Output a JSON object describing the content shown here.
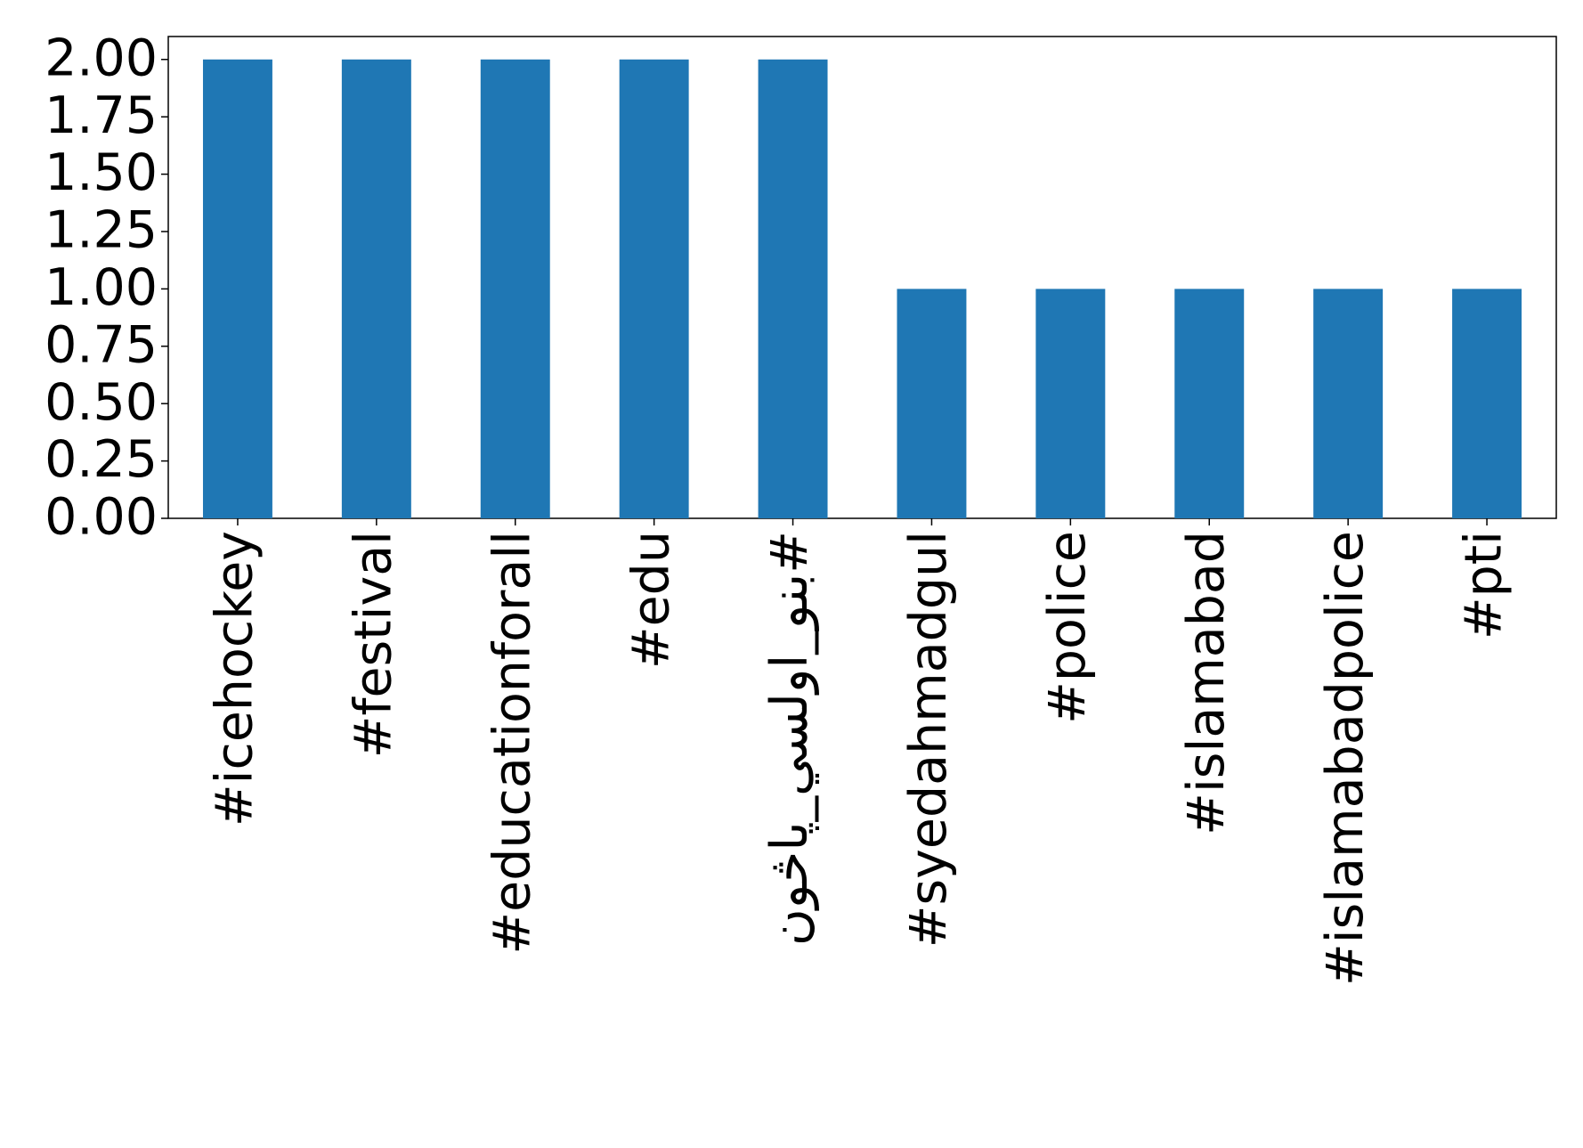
{
  "chart_data": {
    "type": "bar",
    "categories": [
      "#icehockey",
      "#festival",
      "#educationforall",
      "#edu",
      "#بنو_اولسي_پاڅون",
      "#syedahmadgul",
      "#police",
      "#islamabad",
      "#islamabadpolice",
      "#pti"
    ],
    "values": [
      2,
      2,
      2,
      2,
      2,
      1,
      1,
      1,
      1,
      1
    ],
    "color": "#1f77b4",
    "ylim": [
      0,
      2.1
    ],
    "yticks": [
      {
        "value": 0,
        "label": "0.00"
      },
      {
        "value": 0.25,
        "label": "0.25"
      },
      {
        "value": 0.5,
        "label": "0.50"
      },
      {
        "value": 0.75,
        "label": "0.75"
      },
      {
        "value": 1,
        "label": "1.00"
      },
      {
        "value": 1.25,
        "label": "1.25"
      },
      {
        "value": 1.5,
        "label": "1.50"
      },
      {
        "value": 1.75,
        "label": "1.75"
      },
      {
        "value": 2,
        "label": "2.00"
      }
    ],
    "grid": false
  }
}
